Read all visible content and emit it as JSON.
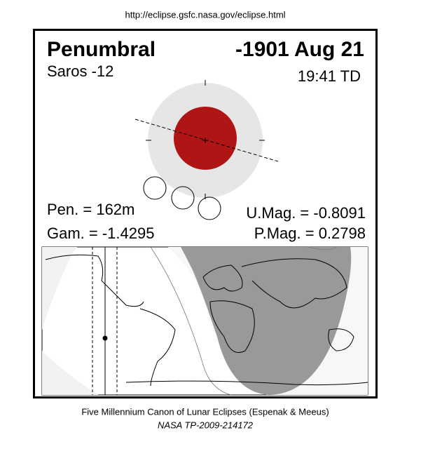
{
  "header": {
    "url": "http://eclipse.gsfc.nasa.gov/eclipse.html"
  },
  "eclipse": {
    "type": "Penumbral",
    "date": "-1901 Aug 21",
    "saros": "Saros -12",
    "time": "19:41 TD",
    "pen": "Pen. = 162m",
    "gam": "Gam. = -1.4295",
    "umag": "U.Mag. = -0.8091",
    "pmag": "P.Mag. = 0.2798"
  },
  "footer": {
    "line1": "Five Millennium Canon of Lunar Eclipses (Espenak & Meeus)",
    "line2": "NASA TP-2009-214172"
  }
}
